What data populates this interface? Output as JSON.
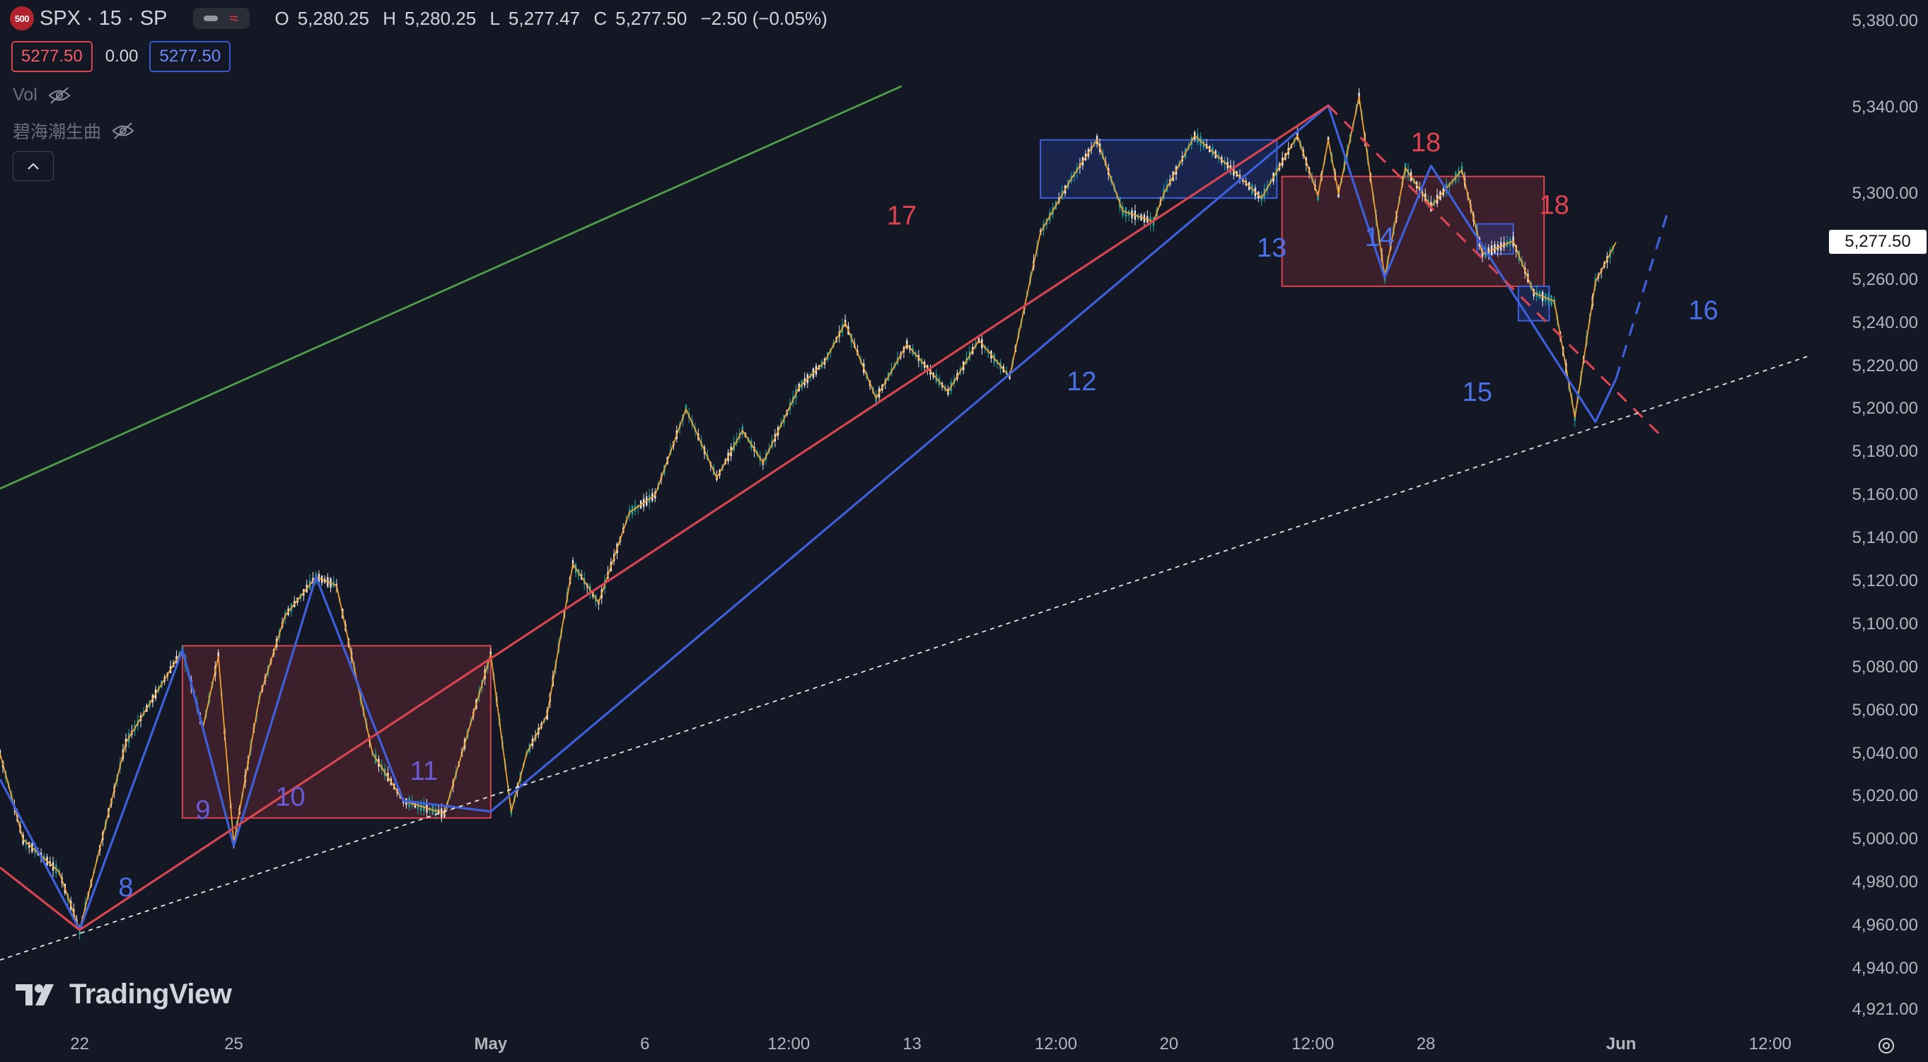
{
  "header": {
    "badge_text": "500",
    "symbol_text": "SPX · 15 · SP",
    "open_key": "O",
    "open": "5,280.25",
    "high_key": "H",
    "high": "5,280.25",
    "low_key": "L",
    "low": "5,277.47",
    "close_key": "C",
    "close": "5,277.50",
    "change": "−2.50 (−0.05%)"
  },
  "price_boxes": {
    "sell": "5277.50",
    "spread": "0.00",
    "buy": "5277.50"
  },
  "indicators": [
    {
      "label": "Vol"
    },
    {
      "label": "碧海潮生曲"
    }
  ],
  "watermark": "TradingView",
  "colors": {
    "background": "#141824",
    "up_candle": "#26a69a",
    "down_candle": "#e8e8e8",
    "orange_wave": "#f0a030",
    "blue_wave": "#3d5fd9",
    "red_wave": "#d64550",
    "green_trend": "#4e9e4a"
  },
  "chart_data": {
    "type": "line",
    "symbol": "SPX",
    "interval": "15",
    "last_price": 5277.5,
    "y_axis": {
      "ticks": [
        5380,
        5340,
        5300,
        5260,
        5240,
        5220,
        5200,
        5180,
        5160,
        5140,
        5120,
        5100,
        5080,
        5060,
        5040,
        5020,
        5000,
        4980,
        4960,
        4940,
        4921
      ],
      "tick_labels": [
        "5,380.00",
        "5,340.00",
        "5,300.00",
        "5,260.00",
        "5,240.00",
        "5,220.00",
        "5,200.00",
        "5,180.00",
        "5,160.00",
        "5,140.00",
        "5,120.00",
        "5,100.00",
        "5,080.00",
        "5,060.00",
        "5,040.00",
        "5,020.00",
        "5,000.00",
        "4,980.00",
        "4,960.00",
        "4,940.00",
        "4,921.00"
      ],
      "range": [
        4917,
        5390
      ]
    },
    "x_axis": {
      "tick_labels": [
        "22",
        "25",
        "May",
        "6",
        "12:00",
        "13",
        "12:00",
        "20",
        "12:00",
        "28",
        "Jun",
        "12:00"
      ],
      "tick_units": [
        3.3,
        6.3,
        11.3,
        14.3,
        17.1,
        19.5,
        22.3,
        24.5,
        27.3,
        29.5,
        33.3,
        36.2
      ],
      "range": [
        1.75,
        37.4
      ]
    },
    "series": [
      {
        "style": "orange_wave",
        "x": [
          1.75,
          2.2,
          2.9,
          3.3,
          4.2,
          5.3,
          5.7,
          6.0,
          6.3,
          6.8,
          7.3,
          7.9,
          8.3,
          9.0,
          9.6,
          10.4,
          11.3,
          11.7,
          12.0,
          12.4,
          12.9,
          13.4,
          14.0,
          14.5,
          15.1,
          15.7,
          16.2,
          16.6,
          17.3,
          17.8,
          18.2,
          18.8,
          19.4,
          20.2,
          20.8,
          21.4,
          21.8,
          22.0,
          22.6,
          23.1,
          23.6,
          24.2,
          24.4,
          25.0,
          25.7,
          26.3,
          27.0,
          27.4,
          27.6,
          27.8,
          28.2,
          28.7,
          29.1,
          29.6,
          30.2,
          30.6,
          31.2,
          31.6,
          32.0,
          32.4,
          32.8,
          33.2
        ],
        "y": [
          5040,
          5000,
          4985,
          4958,
          5045,
          5088,
          5052,
          5085,
          4998,
          5066,
          5104,
          5122,
          5118,
          5040,
          5018,
          5012,
          5086,
          5013,
          5040,
          5058,
          5128,
          5110,
          5152,
          5160,
          5200,
          5168,
          5190,
          5175,
          5210,
          5222,
          5240,
          5205,
          5230,
          5208,
          5232,
          5215,
          5260,
          5282,
          5307,
          5325,
          5292,
          5287,
          5300,
          5327,
          5312,
          5298,
          5327,
          5299,
          5325,
          5300,
          5345,
          5261,
          5312,
          5294,
          5311,
          5272,
          5278,
          5254,
          5250,
          5196,
          5259,
          5277.5
        ]
      },
      {
        "style": "blue_wave",
        "x": [
          1.75,
          3.3,
          5.3,
          6.3,
          7.9,
          9.6,
          11.3,
          27.6,
          28.7,
          29.6,
          32.8,
          33.2,
          34.2
        ],
        "y": [
          5028,
          4958,
          5088,
          4997,
          5122,
          5018,
          5013,
          5341,
          5261,
          5313,
          5194,
          5214,
          5291
        ],
        "dash": "last segment"
      },
      {
        "style": "red_wave",
        "x": [
          1.75,
          3.3,
          27.6,
          34.1
        ],
        "y": [
          4987,
          4958,
          5341,
          5187
        ],
        "dash": "last segment"
      },
      {
        "style": "green_trend",
        "x": [
          1.75,
          19.3
        ],
        "y": [
          5163,
          5350
        ]
      },
      {
        "style": "white_dotted_trend",
        "x": [
          1.75,
          37.0
        ],
        "y": [
          4944,
          5225
        ]
      }
    ],
    "zones": [
      {
        "color": "red",
        "x": [
          5.3,
          11.3
        ],
        "y": [
          5010,
          5090
        ]
      },
      {
        "color": "blue",
        "x": [
          22.0,
          26.6
        ],
        "y": [
          5298,
          5325
        ]
      },
      {
        "color": "red",
        "x": [
          26.7,
          31.8
        ],
        "y": [
          5257,
          5308
        ]
      },
      {
        "color": "blue",
        "x": [
          30.5,
          31.2
        ],
        "y": [
          5272,
          5286
        ]
      },
      {
        "color": "blue",
        "x": [
          31.3,
          31.9
        ],
        "y": [
          5241,
          5257
        ]
      }
    ],
    "annotations": [
      {
        "text": "8",
        "color": "blue",
        "x": 4.2,
        "y": 4977
      },
      {
        "text": "9",
        "color": "purple",
        "x": 5.7,
        "y": 5013
      },
      {
        "text": "10",
        "color": "purple",
        "x": 7.4,
        "y": 5019
      },
      {
        "text": "11",
        "color": "purple",
        "x": 10.0,
        "y": 5031
      },
      {
        "text": "12",
        "color": "blue",
        "x": 22.8,
        "y": 5212
      },
      {
        "text": "13",
        "color": "blue",
        "x": 26.5,
        "y": 5274
      },
      {
        "text": "14",
        "color": "blue",
        "x": 28.6,
        "y": 5279
      },
      {
        "text": "15",
        "color": "blue",
        "x": 30.5,
        "y": 5207
      },
      {
        "text": "16",
        "color": "blue",
        "x": 34.9,
        "y": 5245
      },
      {
        "text": "17",
        "color": "red",
        "x": 19.3,
        "y": 5289
      },
      {
        "text": "18",
        "color": "red",
        "x": 29.5,
        "y": 5323
      },
      {
        "text": "18",
        "color": "red",
        "x": 32.0,
        "y": 5294
      }
    ]
  }
}
